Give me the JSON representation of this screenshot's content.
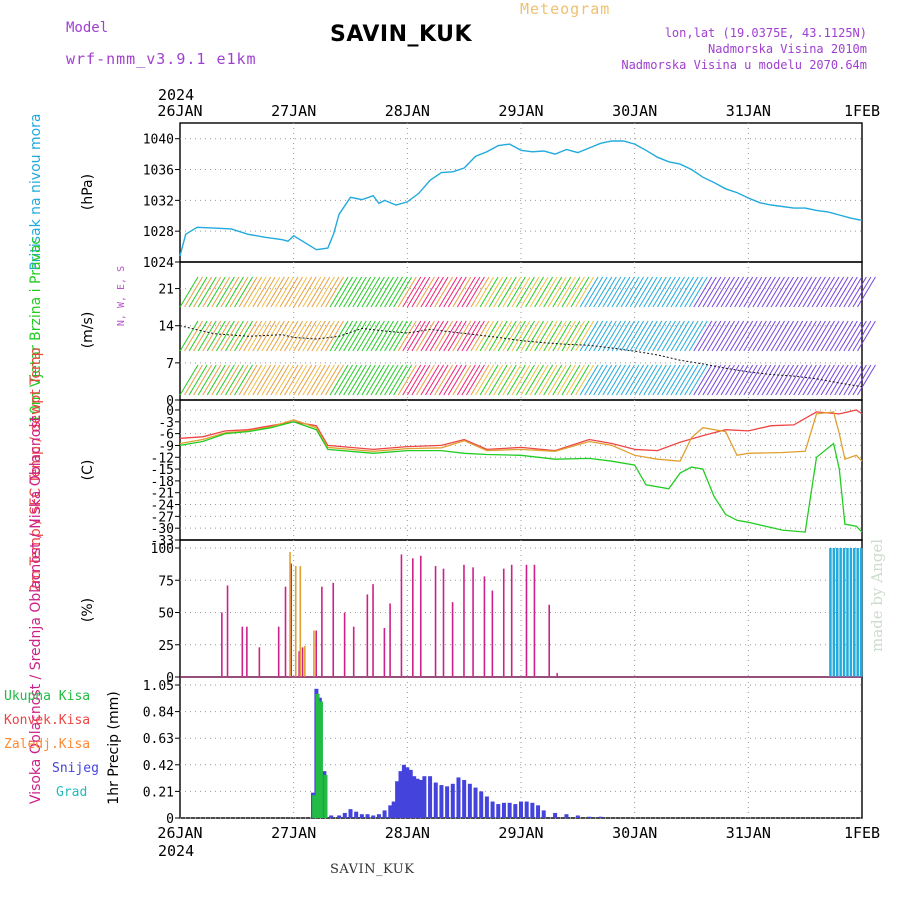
{
  "header": {
    "model_label": "Model",
    "model_name": "wrf-nmm_v3.9.1 e1km",
    "station": "SAVIN_KUK",
    "product": "Meteogram",
    "lonlat": "lon,lat (19.0375E, 43.1125N)",
    "elevation": "Nadmorska Visina 2010m",
    "model_elevation": "Nadmorska Visina u modelu 2070.64m",
    "footer_station": "SAVIN_KUK",
    "watermark": "made by Angel"
  },
  "colors": {
    "pressure": "#22aadd",
    "wind_speed": "#22cc22",
    "temp_2m": "#ee4444",
    "temp_sfc": "#e0a030",
    "dewpoint": "#22cc22",
    "cloud_high": "#22aadd",
    "cloud_mid": "#e0a030",
    "cloud_low": "#cc2288",
    "precip_total": "#22bb44",
    "precip_conv": "#ee4444",
    "precip_frz": "#ff8833",
    "snow": "#4444dd",
    "hail": "#22bbbb",
    "direction_label": "#bb55cc"
  },
  "chart_data": [
    {
      "type": "line",
      "panel": "pressure",
      "ylabel": "Pritisak na nivou mora",
      "unit": "(hPa)",
      "ylim": [
        1024,
        1041
      ],
      "yticks": [
        1024,
        1028,
        1032,
        1036,
        1040
      ],
      "grid": true,
      "x_top_labels": [
        "26JAN",
        "27JAN",
        "28JAN",
        "29JAN",
        "30JAN",
        "31JAN",
        "1FEB"
      ],
      "x_top_year": "2024",
      "series": [
        {
          "x": [
            0,
            0.05,
            0.15,
            0.3,
            0.45,
            0.6,
            0.75,
            0.9,
            0.95,
            1.0,
            1.1,
            1.2,
            1.3,
            1.35,
            1.4,
            1.5,
            1.6,
            1.7,
            1.75,
            1.8,
            1.9,
            2.0,
            2.1,
            2.2,
            2.3,
            2.4,
            2.5,
            2.6,
            2.7,
            2.8,
            2.9,
            3.0,
            3.1,
            3.2,
            3.3,
            3.4,
            3.5,
            3.6,
            3.7,
            3.8,
            3.9,
            4.0,
            4.1,
            4.2,
            4.3,
            4.4,
            4.5,
            4.6,
            4.7,
            4.8,
            4.9,
            5.0,
            5.1,
            5.2,
            5.3,
            5.4,
            5.5,
            5.6,
            5.7,
            5.8,
            5.9,
            6.0
          ],
          "y": [
            1024.8,
            1027.6,
            1028.5,
            1028.4,
            1028.3,
            1027.6,
            1027.2,
            1026.9,
            1026.7,
            1027.4,
            1026.5,
            1025.6,
            1025.8,
            1027.6,
            1030.2,
            1032.4,
            1032.1,
            1032.6,
            1031.6,
            1032.0,
            1031.4,
            1031.8,
            1032.9,
            1034.6,
            1035.6,
            1035.7,
            1036.2,
            1037.7,
            1038.3,
            1039.1,
            1039.3,
            1038.5,
            1038.3,
            1038.4,
            1038.0,
            1038.6,
            1038.2,
            1038.8,
            1039.4,
            1039.7,
            1039.7,
            1039.3,
            1038.5,
            1037.6,
            1037.0,
            1036.7,
            1036.0,
            1035.0,
            1034.3,
            1033.5,
            1033.0,
            1032.3,
            1031.7,
            1031.4,
            1031.2,
            1031.0,
            1031.0,
            1030.7,
            1030.5,
            1030.1,
            1029.7,
            1029.4
          ]
        }
      ]
    },
    {
      "type": "line",
      "panel": "wind",
      "ylabel": "10m Vjetar Brzina i Pravac",
      "unit": "(m/s)",
      "direction_legend": "N, W, E, S",
      "ylim": [
        0,
        24.5
      ],
      "yticks": [
        0,
        7,
        14,
        21
      ],
      "grid": true,
      "series": [
        {
          "name": "speed",
          "x": [
            0,
            0.3,
            0.6,
            0.9,
            1.0,
            1.2,
            1.4,
            1.6,
            1.8,
            2.0,
            2.2,
            2.4,
            2.6,
            2.8,
            3.0,
            3.2,
            3.4,
            3.6,
            3.8,
            4.0,
            4.2,
            4.4,
            4.6,
            4.8,
            5.0,
            5.2,
            5.4,
            5.6,
            5.8,
            6.0
          ],
          "y": [
            14.0,
            12.5,
            12.0,
            12.3,
            11.8,
            11.5,
            12.0,
            13.5,
            13.0,
            12.6,
            13.3,
            12.8,
            12.3,
            11.8,
            11.2,
            10.8,
            10.5,
            10.3,
            9.8,
            9.2,
            8.5,
            7.5,
            6.8,
            6.0,
            5.3,
            4.8,
            4.5,
            4.0,
            3.2,
            2.5
          ]
        }
      ]
    },
    {
      "type": "line",
      "panel": "temperature",
      "ylabel": "2m Temp / SFC Temp / dewpt Temp",
      "unit": "(C)",
      "ylim": [
        -33,
        0.5
      ],
      "yticks": [
        0,
        -3,
        -6,
        -9,
        -12,
        -15,
        -18,
        -21,
        -24,
        -27,
        -30,
        -33
      ],
      "grid": true,
      "series": [
        {
          "name": "2m Temp",
          "x": [
            0,
            0.2,
            0.4,
            0.6,
            0.8,
            1.0,
            1.2,
            1.3,
            1.5,
            1.7,
            2.0,
            2.3,
            2.5,
            2.7,
            3.0,
            3.3,
            3.6,
            3.8,
            4.0,
            4.2,
            4.4,
            4.6,
            4.8,
            5.0,
            5.2,
            5.4,
            5.6,
            5.8,
            5.95,
            6.0
          ],
          "y": [
            -7.2,
            -6.8,
            -5.3,
            -5.0,
            -4.0,
            -3.0,
            -4.0,
            -9.0,
            -9.5,
            -10.0,
            -9.3,
            -9.0,
            -7.5,
            -10.0,
            -9.5,
            -10.3,
            -7.5,
            -8.5,
            -10.0,
            -10.3,
            -8.2,
            -6.5,
            -5.0,
            -5.3,
            -4.0,
            -3.8,
            -0.5,
            -1.0,
            0.0,
            -1.0
          ]
        },
        {
          "name": "SFC Temp",
          "x": [
            0,
            0.2,
            0.4,
            0.6,
            0.8,
            1.0,
            1.2,
            1.3,
            1.5,
            1.7,
            2.0,
            2.3,
            2.5,
            2.7,
            3.0,
            3.3,
            3.6,
            3.8,
            4.0,
            4.2,
            4.4,
            4.5,
            4.6,
            4.8,
            4.9,
            5.0,
            5.3,
            5.5,
            5.6,
            5.75,
            5.8,
            5.85,
            5.95,
            6.0
          ],
          "y": [
            -8.5,
            -7.5,
            -5.8,
            -5.3,
            -4.3,
            -2.5,
            -4.5,
            -9.5,
            -10.0,
            -10.5,
            -9.8,
            -9.6,
            -7.8,
            -10.3,
            -10.0,
            -10.5,
            -8.0,
            -9.0,
            -11.5,
            -12.5,
            -13.0,
            -7.0,
            -4.5,
            -5.5,
            -11.5,
            -11.0,
            -10.8,
            -10.5,
            -1.0,
            -0.5,
            -6.0,
            -12.5,
            -11.5,
            -13.0
          ]
        },
        {
          "name": "dewpt Temp",
          "x": [
            0,
            0.2,
            0.4,
            0.6,
            0.8,
            1.0,
            1.2,
            1.3,
            1.5,
            1.7,
            2.0,
            2.3,
            2.5,
            2.7,
            3.0,
            3.3,
            3.6,
            3.8,
            4.0,
            4.1,
            4.3,
            4.4,
            4.5,
            4.6,
            4.7,
            4.8,
            4.9,
            5.0,
            5.3,
            5.5,
            5.6,
            5.75,
            5.8,
            5.85,
            5.95,
            6.0
          ],
          "y": [
            -9.0,
            -8.0,
            -6.0,
            -5.5,
            -4.5,
            -3.0,
            -5.0,
            -10.0,
            -10.5,
            -11.0,
            -10.3,
            -10.3,
            -11.0,
            -11.3,
            -11.5,
            -12.5,
            -12.3,
            -13.0,
            -14.0,
            -19.0,
            -20.0,
            -16.0,
            -14.5,
            -15.0,
            -22.0,
            -26.5,
            -28.0,
            -28.5,
            -30.5,
            -31.0,
            -12.0,
            -8.5,
            -15.0,
            -29.0,
            -29.5,
            -31.0
          ]
        }
      ]
    },
    {
      "type": "bar",
      "panel": "clouds",
      "ylabel": "Visoka Oblacnost / Srednja Oblacnost / Niska Oblacnost",
      "unit": "(%)",
      "ylim": [
        0,
        100
      ],
      "yticks": [
        0,
        25,
        50,
        75,
        100
      ],
      "grid": true,
      "series": [
        {
          "name": "Niska Oblacnost",
          "x": [
            0.37,
            0.42,
            0.55,
            0.59,
            0.7,
            0.87,
            0.93,
            0.98,
            1.05,
            1.08,
            1.2,
            1.25,
            1.35,
            1.45,
            1.53,
            1.65,
            1.7,
            1.8,
            1.85,
            1.95,
            2.05,
            2.12,
            2.25,
            2.32,
            2.4,
            2.5,
            2.58,
            2.68,
            2.75,
            2.85,
            2.92,
            3.05,
            3.12,
            3.25,
            3.32
          ],
          "y": [
            50,
            71,
            39,
            39,
            23,
            39,
            70,
            88,
            20,
            23,
            36,
            70,
            73,
            50,
            39,
            64,
            72,
            38,
            57,
            95,
            92,
            94,
            86,
            84,
            58,
            87,
            85,
            78,
            67,
            84,
            87,
            87,
            87,
            56,
            3
          ]
        },
        {
          "name": "Srednja Oblacnost",
          "x": [
            0.97,
            1.02,
            1.06,
            1.1,
            1.18
          ],
          "y": [
            97,
            86,
            86,
            24,
            36
          ]
        },
        {
          "name": "Visoka Oblacnost",
          "x": [
            5.72,
            5.75,
            5.78,
            5.81,
            5.84,
            5.87,
            5.9,
            5.93,
            5.96,
            5.99
          ],
          "y": [
            100,
            100,
            100,
            100,
            100,
            100,
            100,
            100,
            100,
            100
          ]
        }
      ]
    },
    {
      "type": "bar",
      "panel": "precip",
      "ylabel": "1hr Precip (mm)",
      "ylim": [
        0,
        1.05
      ],
      "yticks": [
        0,
        0.21,
        0.42,
        0.63,
        0.84,
        1.05
      ],
      "grid": true,
      "legend": [
        "Ukupna Kisa",
        "Konvek.Kisa",
        "Zaledj.Kisa",
        "Snijeg",
        "Grad"
      ],
      "x_bottom_labels": [
        "26JAN",
        "27JAN",
        "28JAN",
        "29JAN",
        "30JAN",
        "31JAN",
        "1FEB"
      ],
      "x_bottom_year": "2024",
      "series": [
        {
          "name": "Snijeg",
          "x": [
            1.17,
            1.2,
            1.23,
            1.27,
            1.33,
            1.4,
            1.45,
            1.5,
            1.55,
            1.6,
            1.65,
            1.7,
            1.75,
            1.8,
            1.85,
            1.88,
            1.91,
            1.94,
            1.97,
            2.0,
            2.03,
            2.06,
            2.09,
            2.12,
            2.15,
            2.2,
            2.25,
            2.3,
            2.35,
            2.4,
            2.45,
            2.5,
            2.55,
            2.6,
            2.65,
            2.7,
            2.75,
            2.8,
            2.85,
            2.9,
            2.95,
            3.0,
            3.05,
            3.1,
            3.15,
            3.2,
            3.3,
            3.4,
            3.5,
            3.6,
            3.7
          ],
          "y": [
            0.2,
            1.02,
            0.95,
            0.37,
            0.02,
            0.02,
            0.04,
            0.07,
            0.05,
            0.03,
            0.03,
            0.02,
            0.03,
            0.06,
            0.1,
            0.13,
            0.29,
            0.37,
            0.42,
            0.4,
            0.38,
            0.33,
            0.31,
            0.3,
            0.33,
            0.33,
            0.28,
            0.26,
            0.25,
            0.27,
            0.32,
            0.3,
            0.27,
            0.24,
            0.21,
            0.17,
            0.13,
            0.11,
            0.12,
            0.12,
            0.11,
            0.13,
            0.13,
            0.12,
            0.1,
            0.06,
            0.04,
            0.03,
            0.02,
            0.01,
            0.01
          ]
        },
        {
          "name": "Ukupna Kisa",
          "x": [
            1.18,
            1.21,
            1.24,
            1.28
          ],
          "y": [
            0.18,
            0.98,
            0.92,
            0.34
          ]
        }
      ]
    }
  ]
}
